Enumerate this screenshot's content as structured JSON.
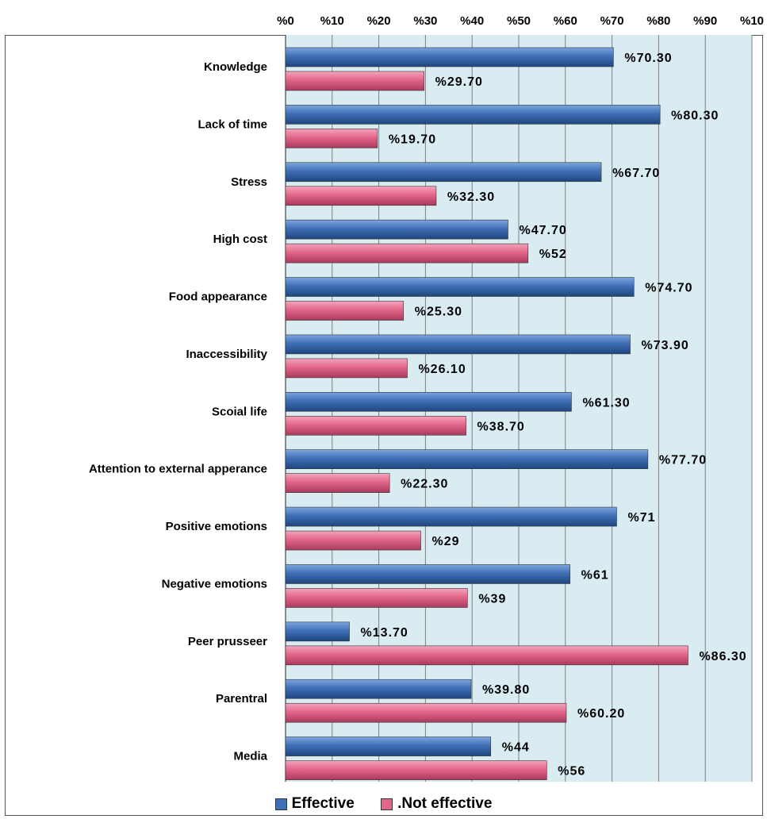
{
  "chart_data": {
    "type": "bar",
    "orientation": "horizontal",
    "categories": [
      "Knowledge",
      "Lack of time",
      "Stress",
      "High cost",
      "Food appearance",
      "Inaccessibility",
      "Scoial life",
      "Attention to external apperance",
      "Positive emotions",
      "Negative emotions",
      "Peer prusseer",
      "Parentral",
      "Media"
    ],
    "series": [
      {
        "name": "Effective",
        "color": "#3f6fb6",
        "values": [
          70.3,
          80.3,
          67.7,
          47.7,
          74.7,
          73.9,
          61.3,
          77.7,
          71,
          61,
          13.7,
          39.8,
          44
        ],
        "labels": [
          "%70.30",
          "%80.30",
          "%67.70",
          "%47.70",
          "%74.70",
          "%73.90",
          "%61.30",
          "%77.70",
          "%71",
          "%61",
          "%13.70",
          "%39.80",
          "%44"
        ]
      },
      {
        "name": ".Not effective",
        "color": "#e2668a",
        "values": [
          29.7,
          19.7,
          32.3,
          52,
          25.3,
          26.1,
          38.7,
          22.3,
          29,
          39,
          86.3,
          60.2,
          56
        ],
        "labels": [
          "%29.70",
          "%19.70",
          "%32.30",
          "%52",
          "%25.30",
          "%26.10",
          "%38.70",
          "%22.30",
          "%29",
          "%39",
          "%86.30",
          "%60.20",
          "%56"
        ]
      }
    ],
    "xlim": [
      0,
      100
    ],
    "ticks": [
      "%0",
      "%10",
      "%20",
      "%30",
      "%40",
      "%50",
      "%60",
      "%70",
      "%80",
      "%90",
      "%10"
    ],
    "grid": true,
    "legend_position": "bottom",
    "plot_background": "#d9ecf2"
  }
}
